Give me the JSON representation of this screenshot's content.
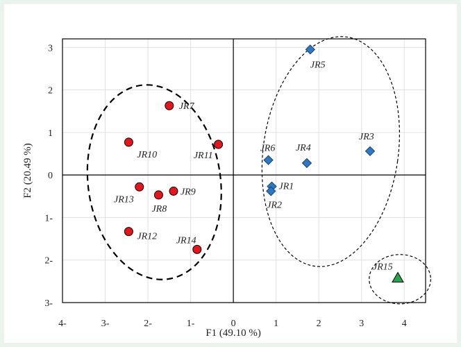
{
  "chart_data": {
    "type": "scatter",
    "xlabel": "F1 (49.10 %)",
    "ylabel": "F2 (20.49 %)",
    "xlim": [
      -4,
      4.5
    ],
    "ylim": [
      -3,
      3.2
    ],
    "x_ticks": [
      -4,
      -3,
      -2,
      -1,
      0,
      1,
      2,
      3,
      4
    ],
    "x_tick_labels": [
      "4-",
      "3-",
      "2-",
      "1-",
      "0",
      "1",
      "2",
      "3",
      "4"
    ],
    "y_ticks": [
      3,
      2,
      1,
      0,
      -1,
      -2,
      -3
    ],
    "y_tick_labels": [
      "3",
      "2",
      "1",
      "0",
      "1-",
      "2-",
      "3-"
    ],
    "grid": true,
    "colors": {
      "circle": "#e8141c",
      "diamond": "#2a79c7",
      "triangle": "#22a64a"
    },
    "series": [
      {
        "marker": "circle",
        "points": [
          {
            "label": "JR7",
            "x": -1.5,
            "y": 1.63
          },
          {
            "label": "JR10",
            "x": -2.45,
            "y": 0.77
          },
          {
            "label": "JR11",
            "x": -0.35,
            "y": 0.72
          },
          {
            "label": "JR13",
            "x": -2.2,
            "y": -0.28
          },
          {
            "label": "JR8",
            "x": -1.75,
            "y": -0.47
          },
          {
            "label": "JR9",
            "x": -1.4,
            "y": -0.38
          },
          {
            "label": "JR12",
            "x": -2.45,
            "y": -1.33
          },
          {
            "label": "JR14",
            "x": -0.85,
            "y": -1.75
          }
        ]
      },
      {
        "marker": "diamond",
        "points": [
          {
            "label": "JR5",
            "x": 1.8,
            "y": 2.95
          },
          {
            "label": "JR6",
            "x": 0.82,
            "y": 0.35
          },
          {
            "label": "JR4",
            "x": 1.72,
            "y": 0.28
          },
          {
            "label": "JR3",
            "x": 3.2,
            "y": 0.56
          },
          {
            "label": "JR1",
            "x": 0.9,
            "y": -0.27
          },
          {
            "label": "JR2",
            "x": 0.88,
            "y": -0.38
          }
        ]
      },
      {
        "marker": "triangle",
        "points": [
          {
            "label": "JR15",
            "x": 3.85,
            "y": -2.42
          }
        ]
      }
    ],
    "ellipses": [
      {
        "cx": -1.85,
        "cy": -0.17,
        "rx": 1.55,
        "ry": 2.3,
        "rotation_deg": -8,
        "style": "bold-dashed"
      },
      {
        "cx": 2.28,
        "cy": 0.55,
        "rx": 1.58,
        "ry": 2.72,
        "rotation_deg": 8,
        "style": "thin-dashed"
      },
      {
        "cx": 3.9,
        "cy": -2.45,
        "rx": 0.72,
        "ry": 0.58,
        "rotation_deg": 0,
        "style": "thin-dashed"
      }
    ]
  }
}
